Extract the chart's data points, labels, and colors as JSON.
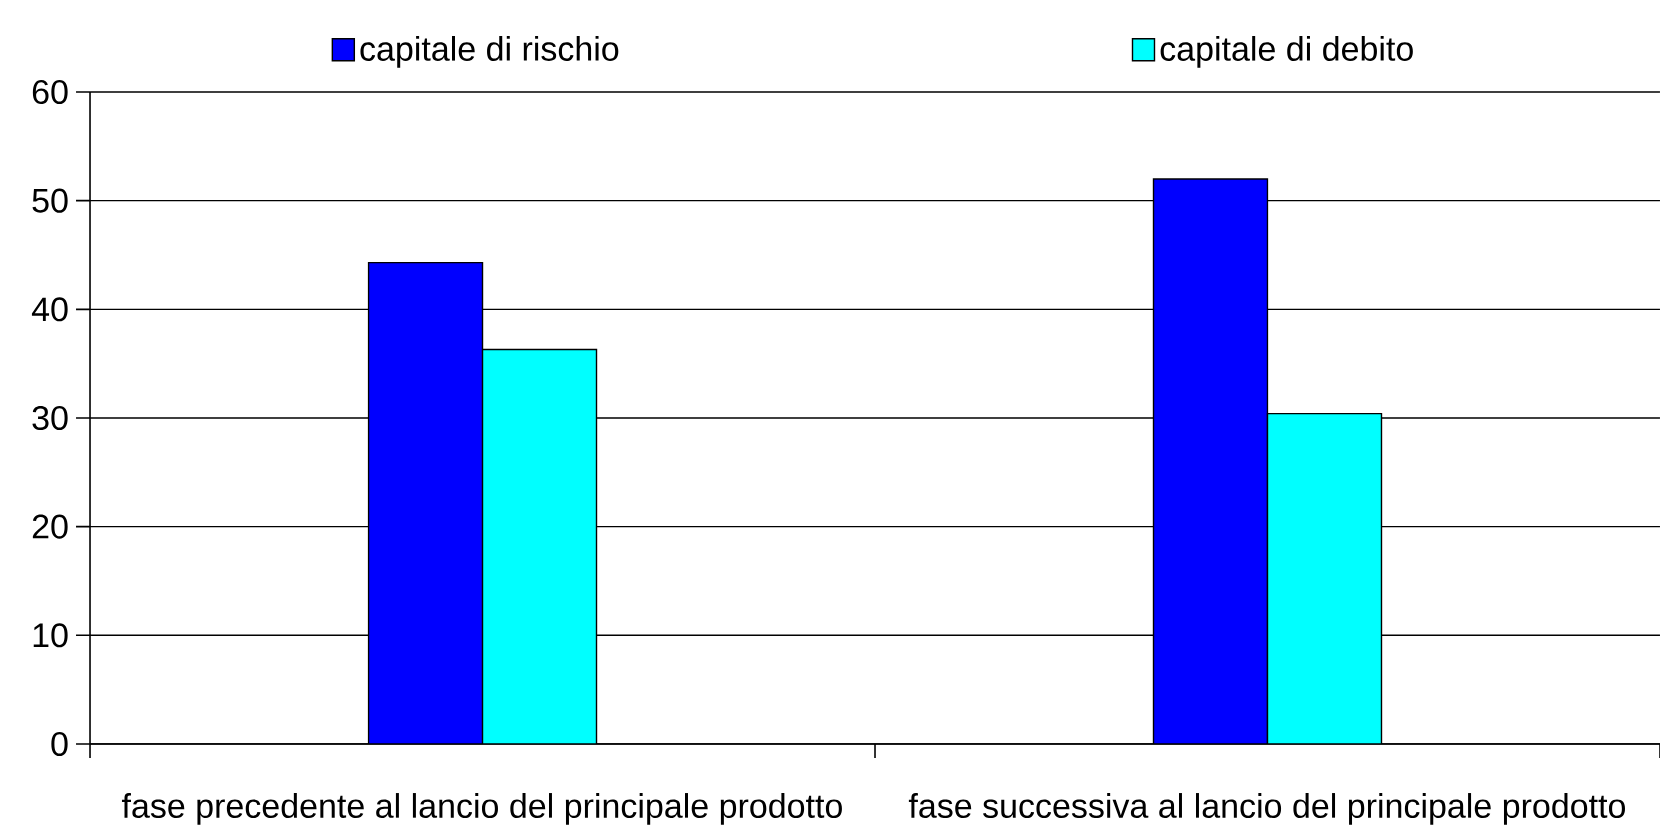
{
  "chart_data": {
    "type": "bar",
    "categories": [
      "fase precedente al lancio del principale prodotto",
      "fase successiva al lancio del principale prodotto"
    ],
    "series": [
      {
        "name": "capitale di rischio",
        "color": "#0000ff",
        "values": [
          44.3,
          52.0
        ]
      },
      {
        "name": "capitale di debito",
        "color": "#00ffff",
        "values": [
          36.3,
          30.4
        ]
      }
    ],
    "ylim": [
      0,
      60
    ],
    "yticks": [
      0,
      10,
      20,
      30,
      40,
      50,
      60
    ],
    "grid": "y",
    "legend": "top"
  }
}
